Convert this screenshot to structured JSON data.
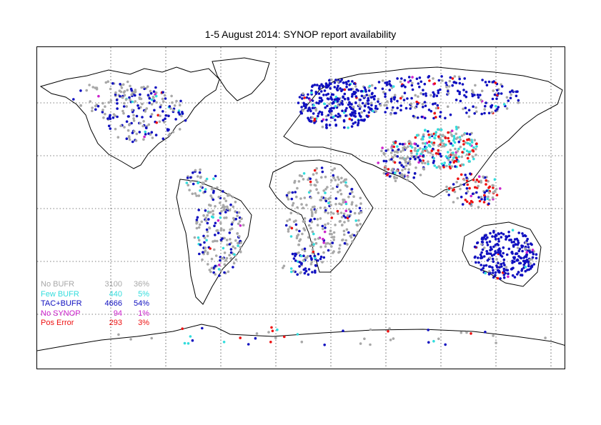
{
  "title": "1-5 August 2014: SYNOP report availability",
  "map": {
    "projection": "equirectangular world",
    "graticule": "dotted every 30 degrees"
  },
  "legend": [
    {
      "label": "No BUFR",
      "count": "3100",
      "percent": "36%",
      "color": "#a8a8a8"
    },
    {
      "label": "Few BUFR",
      "count": "440",
      "percent": "5%",
      "color": "#33dddd"
    },
    {
      "label": "TAC+BUFR",
      "count": "4666",
      "percent": "54%",
      "color": "#1010c0"
    },
    {
      "label": "No SYNOP",
      "count": "94",
      "percent": "1%",
      "color": "#cc22cc"
    },
    {
      "label": "Pos Error",
      "count": "293",
      "percent": "3%",
      "color": "#ee1111"
    }
  ]
}
